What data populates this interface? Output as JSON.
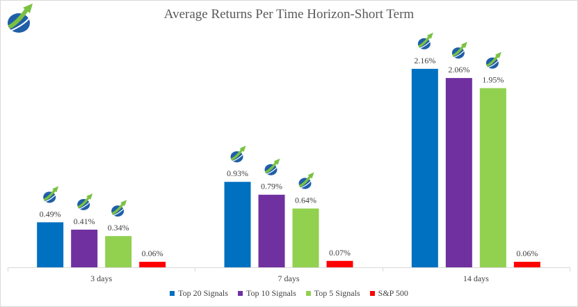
{
  "chart_data": {
    "type": "bar",
    "title": "Average Returns Per Time Horizon-Short Term",
    "categories": [
      "3 days",
      "7 days",
      "14 days"
    ],
    "series": [
      {
        "name": "Top 20 Signals",
        "color": "#0070c0",
        "values": [
          0.49,
          0.93,
          2.16
        ],
        "labels": [
          "0.49%",
          "0.93%",
          "2.16%"
        ]
      },
      {
        "name": "Top 10 Signals",
        "color": "#7030a0",
        "values": [
          0.41,
          0.79,
          2.06
        ],
        "labels": [
          "0.41%",
          "0.79%",
          "2.06%"
        ]
      },
      {
        "name": "Top 5 Signals",
        "color": "#92d050",
        "values": [
          0.34,
          0.64,
          1.95
        ],
        "labels": [
          "0.34%",
          "0.64%",
          "1.95%"
        ]
      },
      {
        "name": "S&P 500",
        "color": "#ff0000",
        "values": [
          0.06,
          0.07,
          0.06
        ],
        "labels": [
          "0.06%",
          "0.07%",
          "0.06%"
        ]
      }
    ],
    "ylim": [
      0,
      2.5
    ],
    "grid": false,
    "legend": "bottom",
    "xlabel": "",
    "ylabel": "",
    "logo": "growth-arrow-logo-icon"
  }
}
